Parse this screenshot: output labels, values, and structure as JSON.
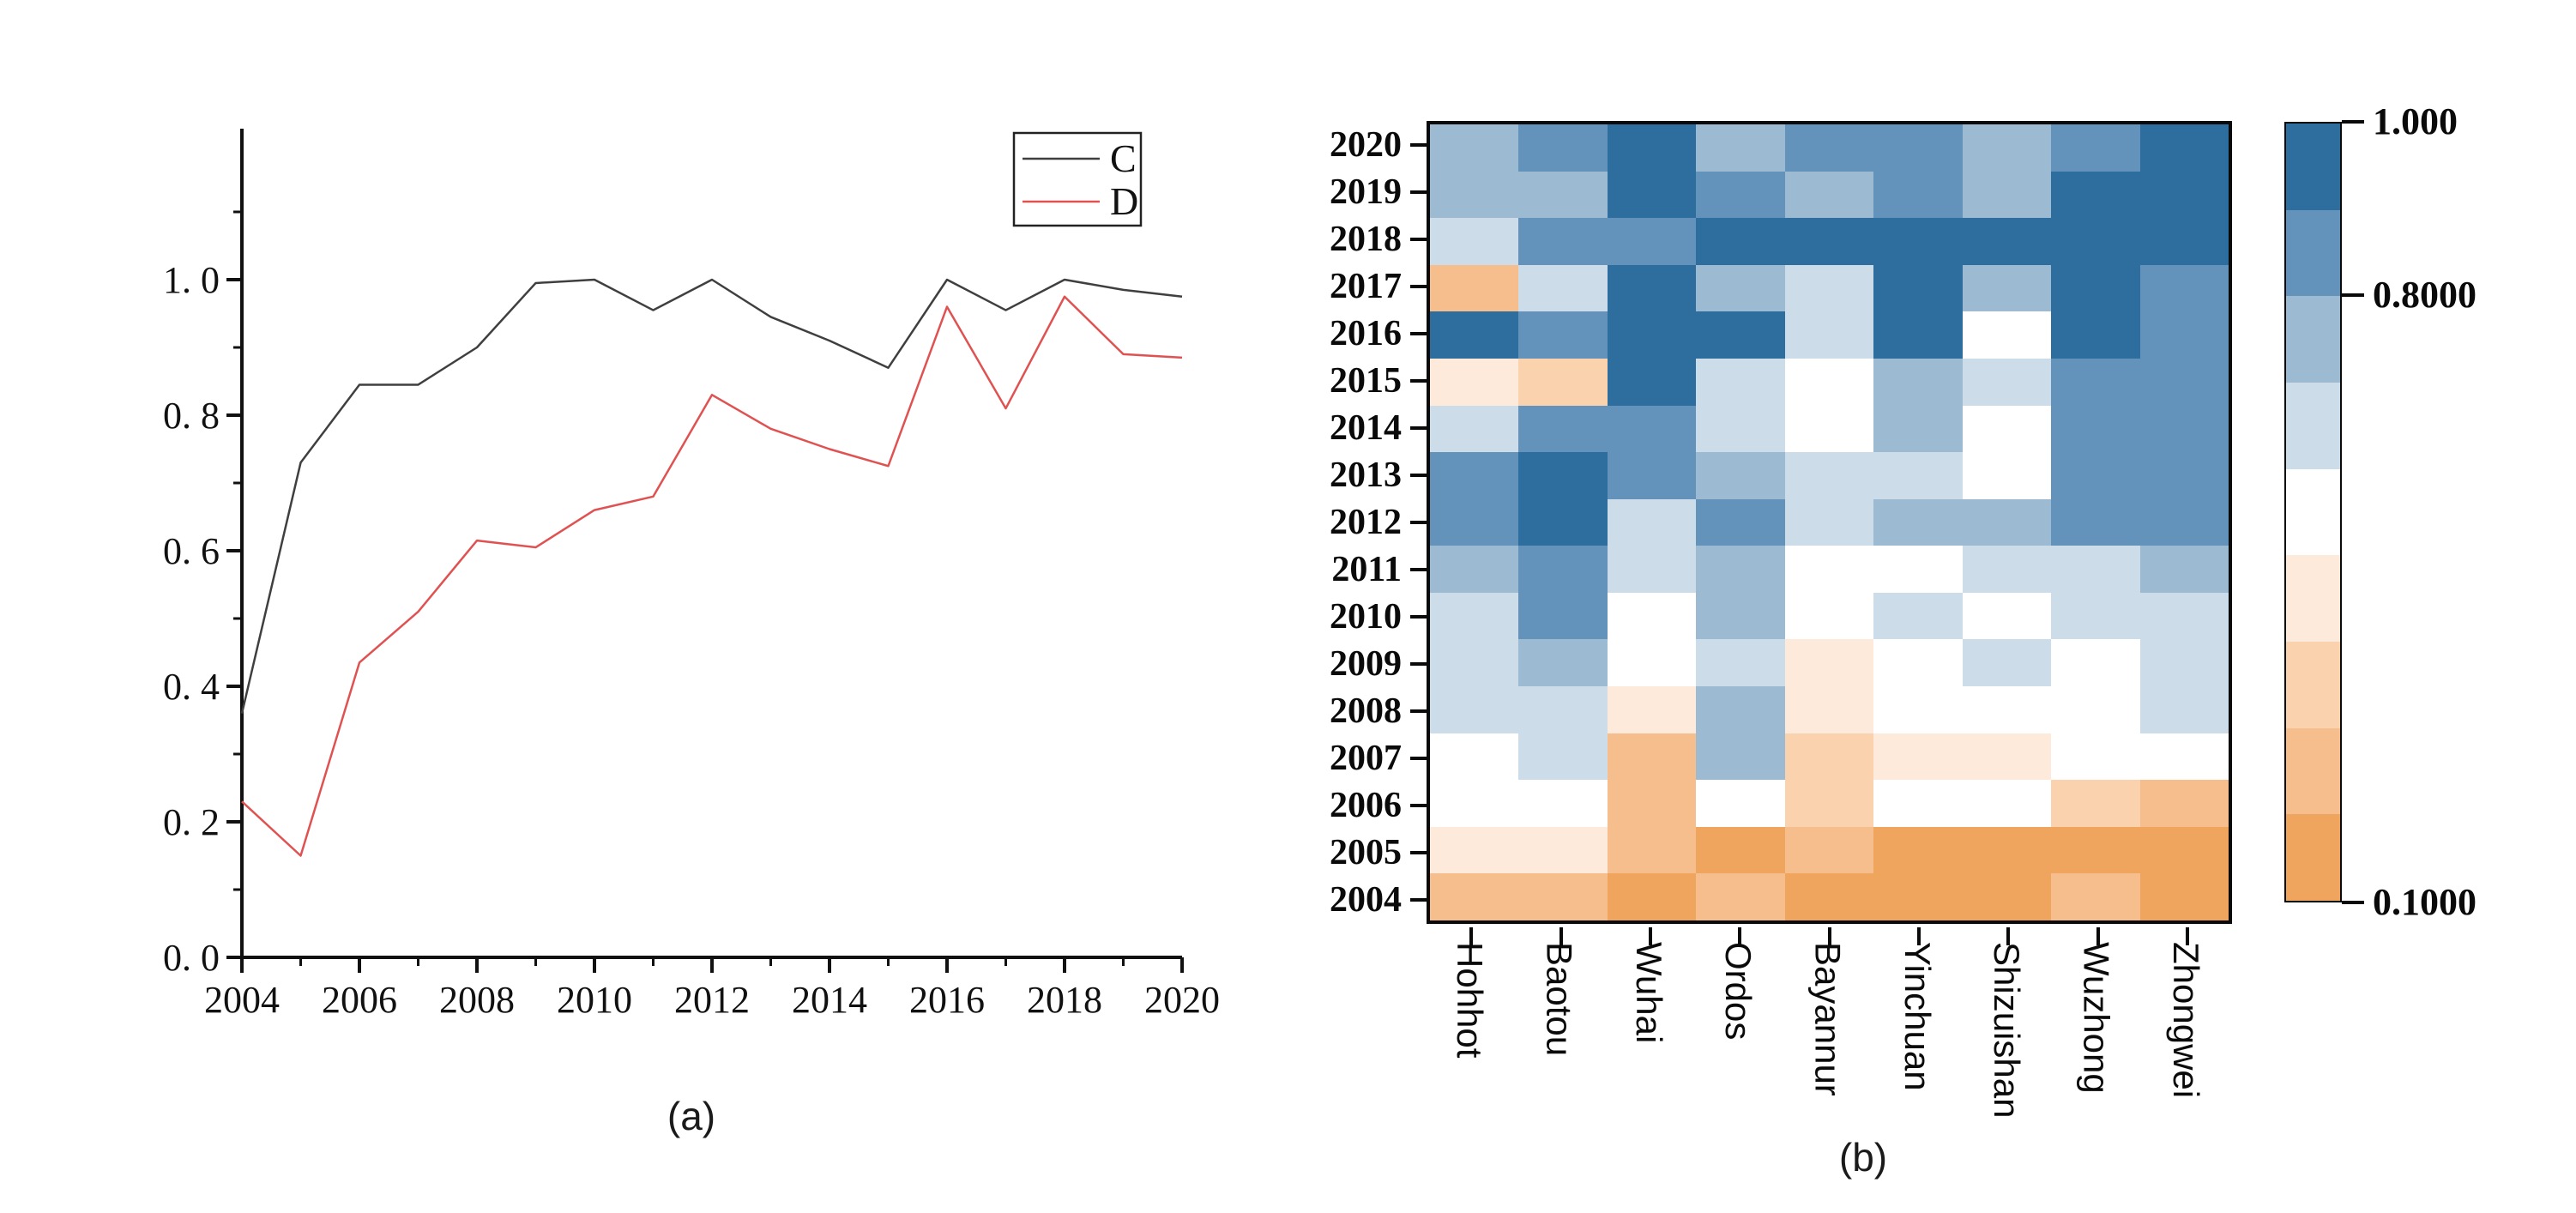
{
  "figure": {
    "background": "#ffffff",
    "caption_a": "(a)",
    "caption_b": "(b)"
  },
  "chart_data": [
    {
      "type": "line",
      "panel": "a",
      "title": "",
      "xlabel": "",
      "ylabel": "",
      "x": [
        2004,
        2005,
        2006,
        2007,
        2008,
        2009,
        2010,
        2011,
        2012,
        2013,
        2014,
        2015,
        2016,
        2017,
        2018,
        2019,
        2020
      ],
      "series": [
        {
          "name": "C",
          "color": "#3f3f3f",
          "values": [
            0.36,
            0.73,
            0.845,
            0.845,
            0.9,
            0.995,
            1.0,
            0.955,
            1.0,
            0.945,
            0.91,
            0.87,
            1.0,
            0.955,
            1.0,
            0.985,
            0.975
          ]
        },
        {
          "name": "D",
          "color": "#e05252",
          "values": [
            0.23,
            0.15,
            0.435,
            0.51,
            0.615,
            0.605,
            0.66,
            0.68,
            0.83,
            0.78,
            0.75,
            0.725,
            0.96,
            0.81,
            0.975,
            0.89,
            0.885
          ]
        }
      ],
      "xlim": [
        2004,
        2020
      ],
      "ylim": [
        0,
        1.22
      ],
      "xticks": [
        2004,
        2006,
        2008,
        2010,
        2012,
        2014,
        2016,
        2018,
        2020
      ],
      "xtick_labels": [
        "2004",
        "2006",
        "2008",
        "2010",
        "2012",
        "2014",
        "2016",
        "2018",
        "2020"
      ],
      "xminor_ticks": [
        2005,
        2007,
        2009,
        2011,
        2013,
        2015,
        2017,
        2019
      ],
      "yticks": [
        0.0,
        0.2,
        0.4,
        0.6,
        0.8,
        1.0
      ],
      "ytick_labels": [
        "0. 0",
        "0. 2",
        "0. 4",
        "0. 6",
        "0. 8",
        "1. 0"
      ],
      "yminor_ticks": [
        0.1,
        0.3,
        0.5,
        0.7,
        0.9,
        1.1
      ],
      "grid": false,
      "legend_position": "upper-right"
    },
    {
      "type": "heatmap",
      "panel": "b",
      "title": "",
      "columns": [
        "Hohhot",
        "Baotou",
        "Wuhai",
        "Ordos",
        "Bayannur",
        "Yinchuan",
        "Shizuishan",
        "Wuzhong",
        "Zhongwei"
      ],
      "rows": [
        "2020",
        "2019",
        "2018",
        "2017",
        "2016",
        "2015",
        "2014",
        "2013",
        "2012",
        "2011",
        "2010",
        "2009",
        "2008",
        "2007",
        "2006",
        "2005",
        "2004"
      ],
      "values": [
        [
          0.75,
          0.85,
          0.95,
          0.75,
          0.85,
          0.85,
          0.75,
          0.85,
          0.95
        ],
        [
          0.75,
          0.75,
          0.95,
          0.85,
          0.75,
          0.85,
          0.75,
          0.95,
          0.95
        ],
        [
          0.65,
          0.85,
          0.85,
          0.95,
          0.95,
          0.95,
          0.95,
          0.95,
          0.95
        ],
        [
          0.25,
          0.65,
          0.95,
          0.75,
          0.65,
          0.95,
          0.75,
          0.95,
          0.85
        ],
        [
          0.95,
          0.85,
          0.95,
          0.95,
          0.65,
          0.95,
          0.55,
          0.95,
          0.85
        ],
        [
          0.45,
          0.35,
          0.95,
          0.65,
          0.55,
          0.75,
          0.65,
          0.85,
          0.85
        ],
        [
          0.65,
          0.85,
          0.85,
          0.65,
          0.55,
          0.75,
          0.55,
          0.85,
          0.85
        ],
        [
          0.85,
          0.95,
          0.85,
          0.75,
          0.65,
          0.65,
          0.55,
          0.85,
          0.85
        ],
        [
          0.85,
          0.95,
          0.65,
          0.85,
          0.65,
          0.75,
          0.75,
          0.85,
          0.85
        ],
        [
          0.75,
          0.85,
          0.65,
          0.75,
          0.55,
          0.55,
          0.65,
          0.65,
          0.75
        ],
        [
          0.65,
          0.85,
          0.55,
          0.75,
          0.55,
          0.65,
          0.55,
          0.65,
          0.65
        ],
        [
          0.65,
          0.75,
          0.55,
          0.65,
          0.45,
          0.55,
          0.65,
          0.55,
          0.65
        ],
        [
          0.65,
          0.65,
          0.45,
          0.75,
          0.45,
          0.55,
          0.55,
          0.55,
          0.65
        ],
        [
          0.55,
          0.65,
          0.25,
          0.75,
          0.35,
          0.45,
          0.45,
          0.55,
          0.55
        ],
        [
          0.55,
          0.55,
          0.25,
          0.55,
          0.35,
          0.55,
          0.55,
          0.35,
          0.25
        ],
        [
          0.45,
          0.45,
          0.25,
          0.15,
          0.25,
          0.15,
          0.15,
          0.15,
          0.15
        ],
        [
          0.25,
          0.25,
          0.15,
          0.25,
          0.15,
          0.15,
          0.15,
          0.25,
          0.15
        ]
      ],
      "value_range": [
        0.1,
        1.0
      ],
      "color_bands": [
        {
          "min": 0.9,
          "max": 1.0,
          "color": "#2e6e9f"
        },
        {
          "min": 0.8,
          "max": 0.9,
          "color": "#6392ba"
        },
        {
          "min": 0.7,
          "max": 0.8,
          "color": "#9dbad3"
        },
        {
          "min": 0.6,
          "max": 0.7,
          "color": "#cddce9"
        },
        {
          "min": 0.5,
          "max": 0.6,
          "color": "#ffffff"
        },
        {
          "min": 0.4,
          "max": 0.5,
          "color": "#fdeada"
        },
        {
          "min": 0.3,
          "max": 0.4,
          "color": "#fad2ad"
        },
        {
          "min": 0.2,
          "max": 0.3,
          "color": "#f6be8d"
        },
        {
          "min": 0.1,
          "max": 0.2,
          "color": "#f0a55e"
        }
      ],
      "colorbar_ticks": [
        {
          "label": "1.000",
          "value": 1.0
        },
        {
          "label": "0.8000",
          "value": 0.8
        },
        {
          "label": "0.1000",
          "value": 0.1
        }
      ],
      "legend_position": "right-colorbar"
    }
  ]
}
